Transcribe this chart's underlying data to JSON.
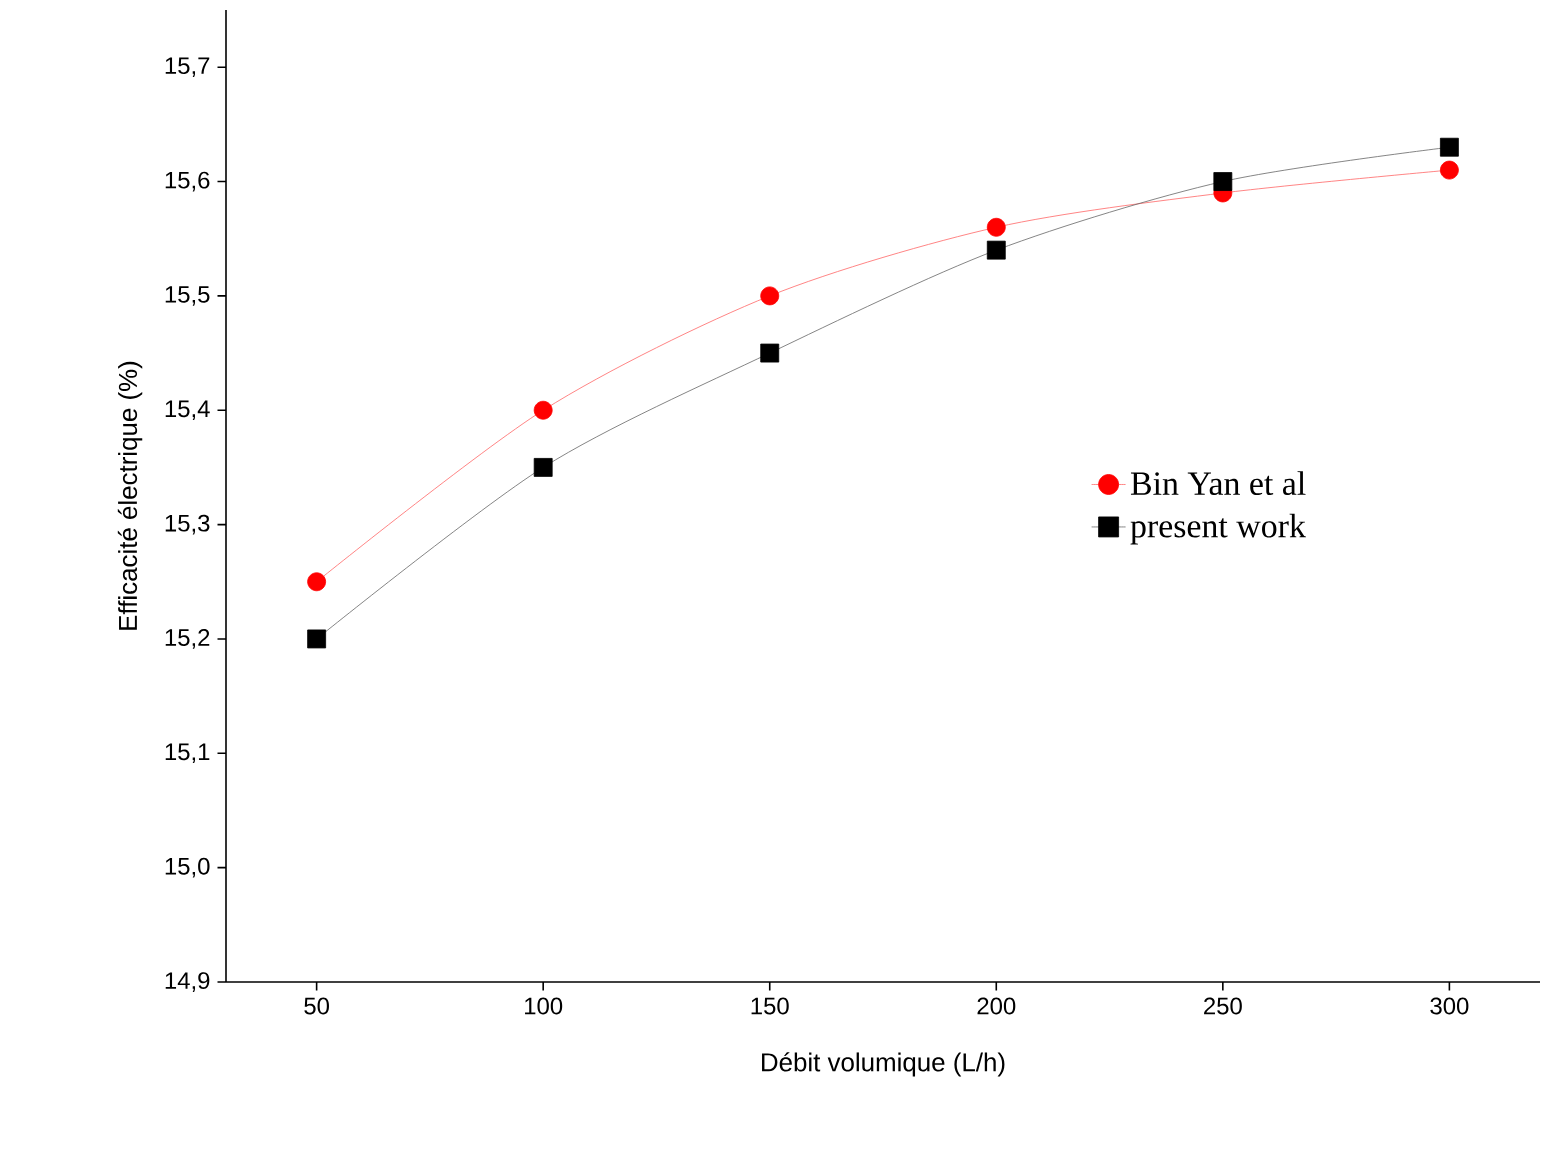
{
  "chart_data": {
    "type": "line",
    "xlabel": "Débit volumique (L/h)",
    "ylabel": "Efficacité électrique (%)",
    "x": [
      50,
      100,
      150,
      200,
      250,
      300
    ],
    "series": [
      {
        "name": "Bin Yan et al",
        "color": "#ff0000",
        "marker": "circle",
        "values": [
          15.25,
          15.4,
          15.5,
          15.56,
          15.59,
          15.61
        ]
      },
      {
        "name": "present work",
        "color": "#000000",
        "marker": "square",
        "values": [
          15.2,
          15.35,
          15.45,
          15.54,
          15.6,
          15.63
        ]
      }
    ],
    "xlim": [
      30,
      320
    ],
    "xticks": [
      50,
      100,
      150,
      200,
      250,
      300
    ],
    "ylim": [
      14.9,
      15.75
    ],
    "yticks": [
      {
        "value": 14.9,
        "label": "14,9"
      },
      {
        "value": 15.0,
        "label": "15,0"
      },
      {
        "value": 15.1,
        "label": "15,1"
      },
      {
        "value": 15.2,
        "label": "15,2"
      },
      {
        "value": 15.3,
        "label": "15,3"
      },
      {
        "value": 15.4,
        "label": "15,4"
      },
      {
        "value": 15.5,
        "label": "15,5"
      },
      {
        "value": 15.6,
        "label": "15,6"
      },
      {
        "value": 15.7,
        "label": "15,7"
      }
    ],
    "legend": "right",
    "grid": false
  }
}
